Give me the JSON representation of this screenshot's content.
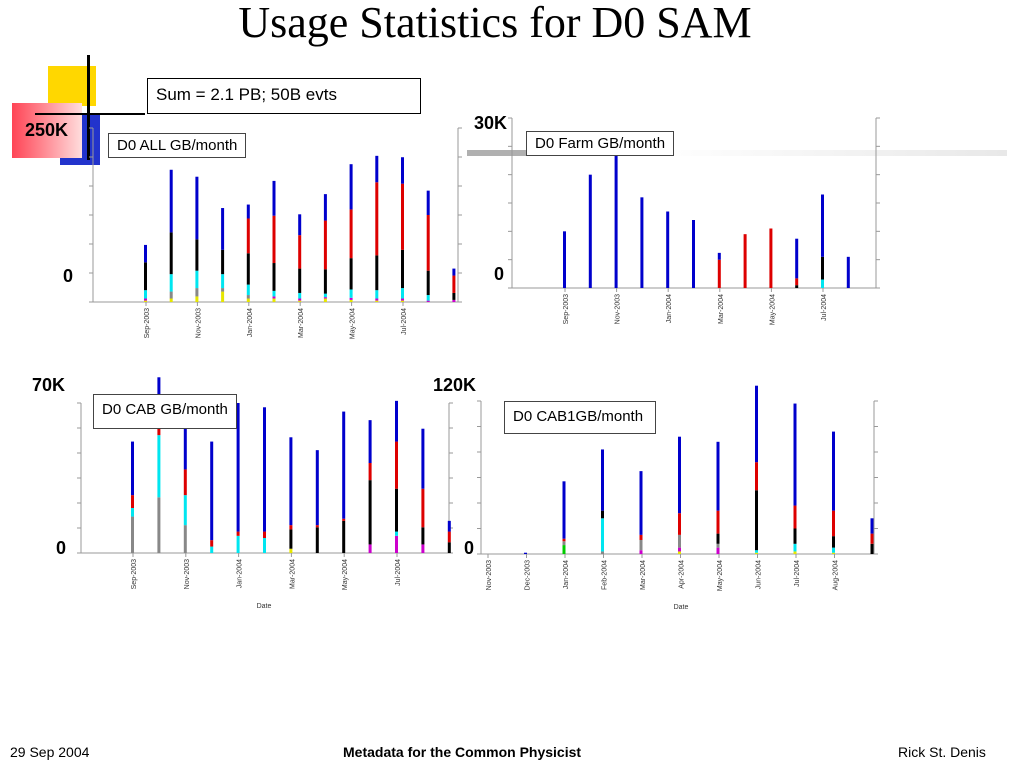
{
  "slide": {
    "title": "Usage Statistics for D0 SAM",
    "summary": "Sum = 2.1 PB; 50B evts",
    "footer_left": "29 Sep 2004",
    "footer_center": "Metadata for the Common Physicist",
    "footer_right": "Rick St. Denis"
  },
  "labels": {
    "all_max": "250K",
    "all_min": "0",
    "farm_max": "30K",
    "farm_min": "0",
    "cab_max": "70K",
    "cab_min": "0",
    "cab1_max": "120K",
    "cab1_min": "0"
  },
  "colors": {
    "blue": "#0000cc",
    "red": "#dd0000",
    "black": "#000000",
    "cyan": "#00e6f0",
    "gray": "#888888",
    "magenta": "#cc00cc",
    "yellow": "#e6e600",
    "green": "#00cc00"
  },
  "chart_data": [
    {
      "type": "bar",
      "title": "D0 ALL GB/month",
      "ylim": [
        0,
        250000
      ],
      "tick_labels": [
        "Sep-2003",
        "Nov-2003",
        "Jan-2004",
        "Mar-2004",
        "May-2004",
        "Jul-2004"
      ],
      "xlabel": "",
      "stacks": [
        {
          "blue": 25000,
          "black": 40000,
          "cyan": 12000,
          "magenta": 3000,
          "yellow": 2000
        },
        {
          "blue": 90000,
          "black": 60000,
          "cyan": 25000,
          "gray": 10000,
          "yellow": 5000
        },
        {
          "blue": 90000,
          "black": 45000,
          "cyan": 25000,
          "gray": 12000,
          "yellow": 8000
        },
        {
          "blue": 60000,
          "black": 35000,
          "cyan": 20000,
          "gray": 5000,
          "yellow": 15000
        },
        {
          "blue": 20000,
          "red": 50000,
          "black": 45000,
          "cyan": 15000,
          "gray": 5000,
          "yellow": 5000
        },
        {
          "blue": 50000,
          "red": 68000,
          "black": 40000,
          "cyan": 8000,
          "magenta": 3000,
          "yellow": 5000
        },
        {
          "blue": 30000,
          "red": 48000,
          "black": 35000,
          "cyan": 8000,
          "magenta": 3000,
          "yellow": 2000
        },
        {
          "blue": 38000,
          "red": 70000,
          "black": 35000,
          "cyan": 5000,
          "magenta": 2000,
          "yellow": 5000
        },
        {
          "blue": 65000,
          "red": 70000,
          "black": 45000,
          "cyan": 12000,
          "magenta": 3000,
          "yellow": 3000
        },
        {
          "blue": 38000,
          "red": 105000,
          "black": 50000,
          "cyan": 12000,
          "magenta": 3000,
          "yellow": 2000
        },
        {
          "blue": 38000,
          "red": 95000,
          "black": 55000,
          "cyan": 15000,
          "magenta": 3000,
          "yellow": 2000
        },
        {
          "blue": 35000,
          "red": 80000,
          "black": 35000,
          "cyan": 8000,
          "magenta": 2000
        },
        {
          "blue": 10000,
          "red": 25000,
          "black": 10000,
          "magenta": 3000
        }
      ]
    },
    {
      "type": "bar",
      "title": "D0 Farm GB/month",
      "ylim": [
        0,
        30000
      ],
      "tick_labels": [
        "Sep-2003",
        "Nov-2003",
        "Jan-2004",
        "Mar-2004",
        "May-2004",
        "Jul-2004"
      ],
      "xlabel": "",
      "stacks": [
        {
          "blue": 10000
        },
        {
          "blue": 20000
        },
        {
          "blue": 25000
        },
        {
          "blue": 16000
        },
        {
          "blue": 13500
        },
        {
          "blue": 12000
        },
        {
          "blue": 1200,
          "red": 5000
        },
        {
          "red": 9500
        },
        {
          "red": 10500
        },
        {
          "blue": 7000,
          "red": 1200,
          "black": 500
        },
        {
          "blue": 11000,
          "black": 4000,
          "cyan": 1500
        },
        {
          "blue": 5500
        }
      ]
    },
    {
      "type": "bar",
      "title": "D0 CAB GB/month",
      "ylim": [
        0,
        70000
      ],
      "tick_labels": [
        "Sep-2003",
        "Nov-2003",
        "Jan-2004",
        "Mar-2004",
        "May-2004",
        "Jul-2004"
      ],
      "xlabel": "Date",
      "stacks": [
        {
          "blue": 25000,
          "red": 6000,
          "cyan": 4000,
          "gray": 17000
        },
        {
          "blue": 20000,
          "red": 7000,
          "cyan": 29000,
          "gray": 26000
        },
        {
          "blue": 21000,
          "red": 12000,
          "cyan": 14000,
          "gray": 13000
        },
        {
          "blue": 46000,
          "red": 3000,
          "cyan": 3000
        },
        {
          "blue": 60000,
          "red": 2000,
          "cyan": 8000
        },
        {
          "blue": 58000,
          "red": 3000,
          "cyan": 7000
        },
        {
          "blue": 41000,
          "red": 2000,
          "black": 9000,
          "yellow": 2000
        },
        {
          "blue": 35000,
          "red": 1000,
          "black": 12000
        },
        {
          "blue": 50000,
          "red": 1000,
          "black": 15000
        },
        {
          "blue": 20000,
          "red": 8000,
          "black": 30000,
          "magenta": 4000
        },
        {
          "blue": 19000,
          "red": 22000,
          "black": 20000,
          "cyan": 2000,
          "magenta": 8000
        },
        {
          "blue": 28000,
          "red": 18000,
          "black": 8000,
          "magenta": 4000
        },
        {
          "blue": 5000,
          "red": 5000,
          "black": 5000
        }
      ]
    },
    {
      "type": "bar",
      "title": "D0 CAB1GB/month",
      "ylim": [
        0,
        120000
      ],
      "tick_labels": [
        "Nov-2003",
        "Dec-2003",
        "Jan-2004",
        "Feb-2004",
        "Mar-2004",
        "Apr-2004",
        "May-2004",
        "Jun-2004",
        "Jul-2004",
        "Aug-2004"
      ],
      "xlabel": "Date",
      "stacks": [
        {
          "blue": 1000
        },
        {
          "blue": 45000,
          "red": 2000,
          "gray": 3000,
          "green": 7000
        },
        {
          "blue": 48000,
          "black": 6000,
          "cyan": 26000,
          "gray": 2000
        },
        {
          "blue": 50000,
          "red": 4000,
          "gray": 8000,
          "magenta": 3000
        },
        {
          "blue": 60000,
          "red": 17000,
          "gray": 10000,
          "magenta": 3000,
          "yellow": 2000
        },
        {
          "blue": 54000,
          "red": 18000,
          "black": 8000,
          "magenta": 5000,
          "gray": 3000
        },
        {
          "blue": 60000,
          "red": 22000,
          "black": 47000,
          "cyan": 2000,
          "yellow": 1000
        },
        {
          "blue": 80000,
          "red": 18000,
          "black": 12000,
          "cyan": 6000,
          "yellow": 2000
        },
        {
          "blue": 62000,
          "red": 20000,
          "black": 9000,
          "cyan": 4000,
          "yellow": 1000
        },
        {
          "blue": 12000,
          "red": 8000,
          "black": 8000
        }
      ]
    }
  ]
}
